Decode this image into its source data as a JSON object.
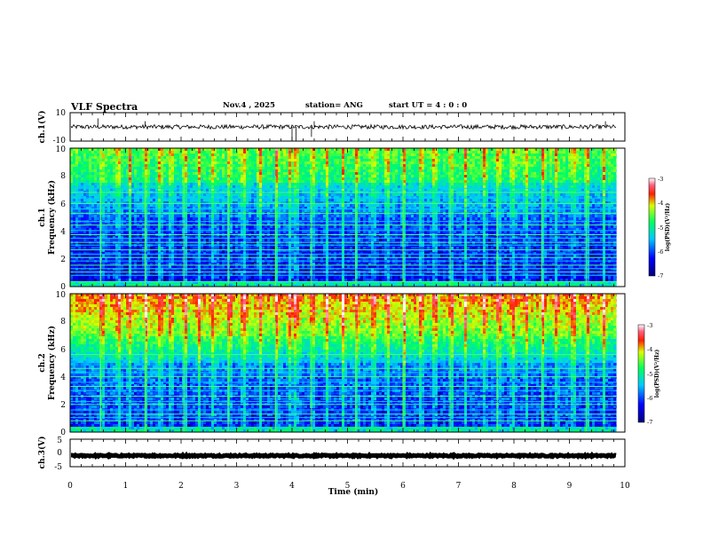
{
  "header": {
    "title": "VLF Spectra",
    "date": "Nov.4  , 2025",
    "station": "station= ANG",
    "start_time": "start  UT  =   4 : 0  : 0"
  },
  "chart_data": [
    {
      "type": "line",
      "id": "ch1-waveform",
      "ylabel": "ch.1(V)",
      "ylim": [
        -10,
        10
      ],
      "yticks": [
        "10",
        "-10"
      ],
      "baseline": 0,
      "noise_amplitude": 1.5,
      "spikes": [
        {
          "x": 0.5,
          "y": 6
        },
        {
          "x": 1.35,
          "y": 4
        },
        {
          "x": 4.0,
          "y": -10
        },
        {
          "x": 4.07,
          "y": -10
        },
        {
          "x": 4.35,
          "y": -7
        },
        {
          "x": 4.4,
          "y": 4
        },
        {
          "x": 9.65,
          "y": 4
        }
      ],
      "xlim": [
        0,
        10
      ],
      "data_end": 9.85
    },
    {
      "type": "heatmap",
      "id": "ch1-spectrogram",
      "ylabel": "Frequency (kHz)",
      "channel_label": "ch.1",
      "ylim": [
        0,
        10
      ],
      "yticks": [
        "0",
        "2",
        "4",
        "6",
        "8",
        "10"
      ],
      "xlim": [
        0,
        10
      ],
      "data_end": 9.85,
      "colorbar": {
        "label": "log(PSD)(V²/Hz)",
        "range": [
          -7,
          -3
        ],
        "ticks": [
          "-3",
          "-4",
          "-5",
          "-6",
          "-7"
        ]
      },
      "hum_lines_khz": [
        0.36,
        0.82,
        1.05,
        1.3,
        1.55,
        1.85,
        2.1,
        2.35,
        2.65,
        3.0,
        3.2,
        3.5,
        3.75,
        4.05,
        4.45,
        4.7,
        5.3,
        5.6,
        6.0,
        6.4,
        6.8,
        7.1
      ],
      "bursts_min": [
        0.55,
        0.85,
        1.05,
        1.35,
        1.6,
        1.8,
        2.05,
        2.3,
        2.55,
        2.85,
        3.1,
        3.4,
        3.7,
        3.95,
        4.05,
        4.35,
        4.6,
        4.9,
        5.15,
        5.45,
        5.7,
        6.0,
        6.3,
        6.55,
        6.85,
        7.1,
        7.45,
        7.7,
        7.95,
        8.2,
        8.5,
        8.75,
        9.05,
        9.3,
        9.6
      ]
    },
    {
      "type": "heatmap",
      "id": "ch2-spectrogram",
      "ylabel": "Frequency (kHz)",
      "channel_label": "ch.2",
      "ylim": [
        0,
        10
      ],
      "yticks": [
        "0",
        "2",
        "4",
        "6",
        "8",
        "10"
      ],
      "xlim": [
        0,
        10
      ],
      "data_end": 9.85,
      "colorbar": {
        "label": "log(PSD)(V²/Hz)",
        "range": [
          -7,
          -3
        ],
        "ticks": [
          "-3",
          "-4",
          "-5",
          "-6",
          "-7"
        ]
      },
      "hum_lines_khz": [
        0.82,
        1.05,
        1.3,
        1.6,
        2.0,
        2.2,
        2.6,
        3.0,
        3.3,
        3.6,
        4.0,
        4.3,
        4.6,
        5.2,
        5.6
      ],
      "bursts_min": [
        0.55,
        0.85,
        1.05,
        1.35,
        1.6,
        1.8,
        2.05,
        2.3,
        2.55,
        2.85,
        3.1,
        3.4,
        3.7,
        3.95,
        4.05,
        4.35,
        4.6,
        4.9,
        5.15,
        5.45,
        5.7,
        6.0,
        6.3,
        6.55,
        6.85,
        7.1,
        7.45,
        7.7,
        7.95,
        8.2,
        8.5,
        8.75,
        9.05,
        9.3,
        9.6
      ]
    },
    {
      "type": "line",
      "id": "ch3-waveform",
      "ylabel": "ch.3(V)",
      "ylim": [
        -5,
        5
      ],
      "yticks": [
        "5",
        "0",
        "-5"
      ],
      "baseline": -1,
      "noise_amplitude": 0.25,
      "xlim": [
        0,
        10
      ],
      "data_end": 9.85
    }
  ],
  "xaxis": {
    "label": "Time  (min)",
    "ticks": [
      "0",
      "1",
      "2",
      "3",
      "4",
      "5",
      "6",
      "7",
      "8",
      "9",
      "10"
    ]
  }
}
